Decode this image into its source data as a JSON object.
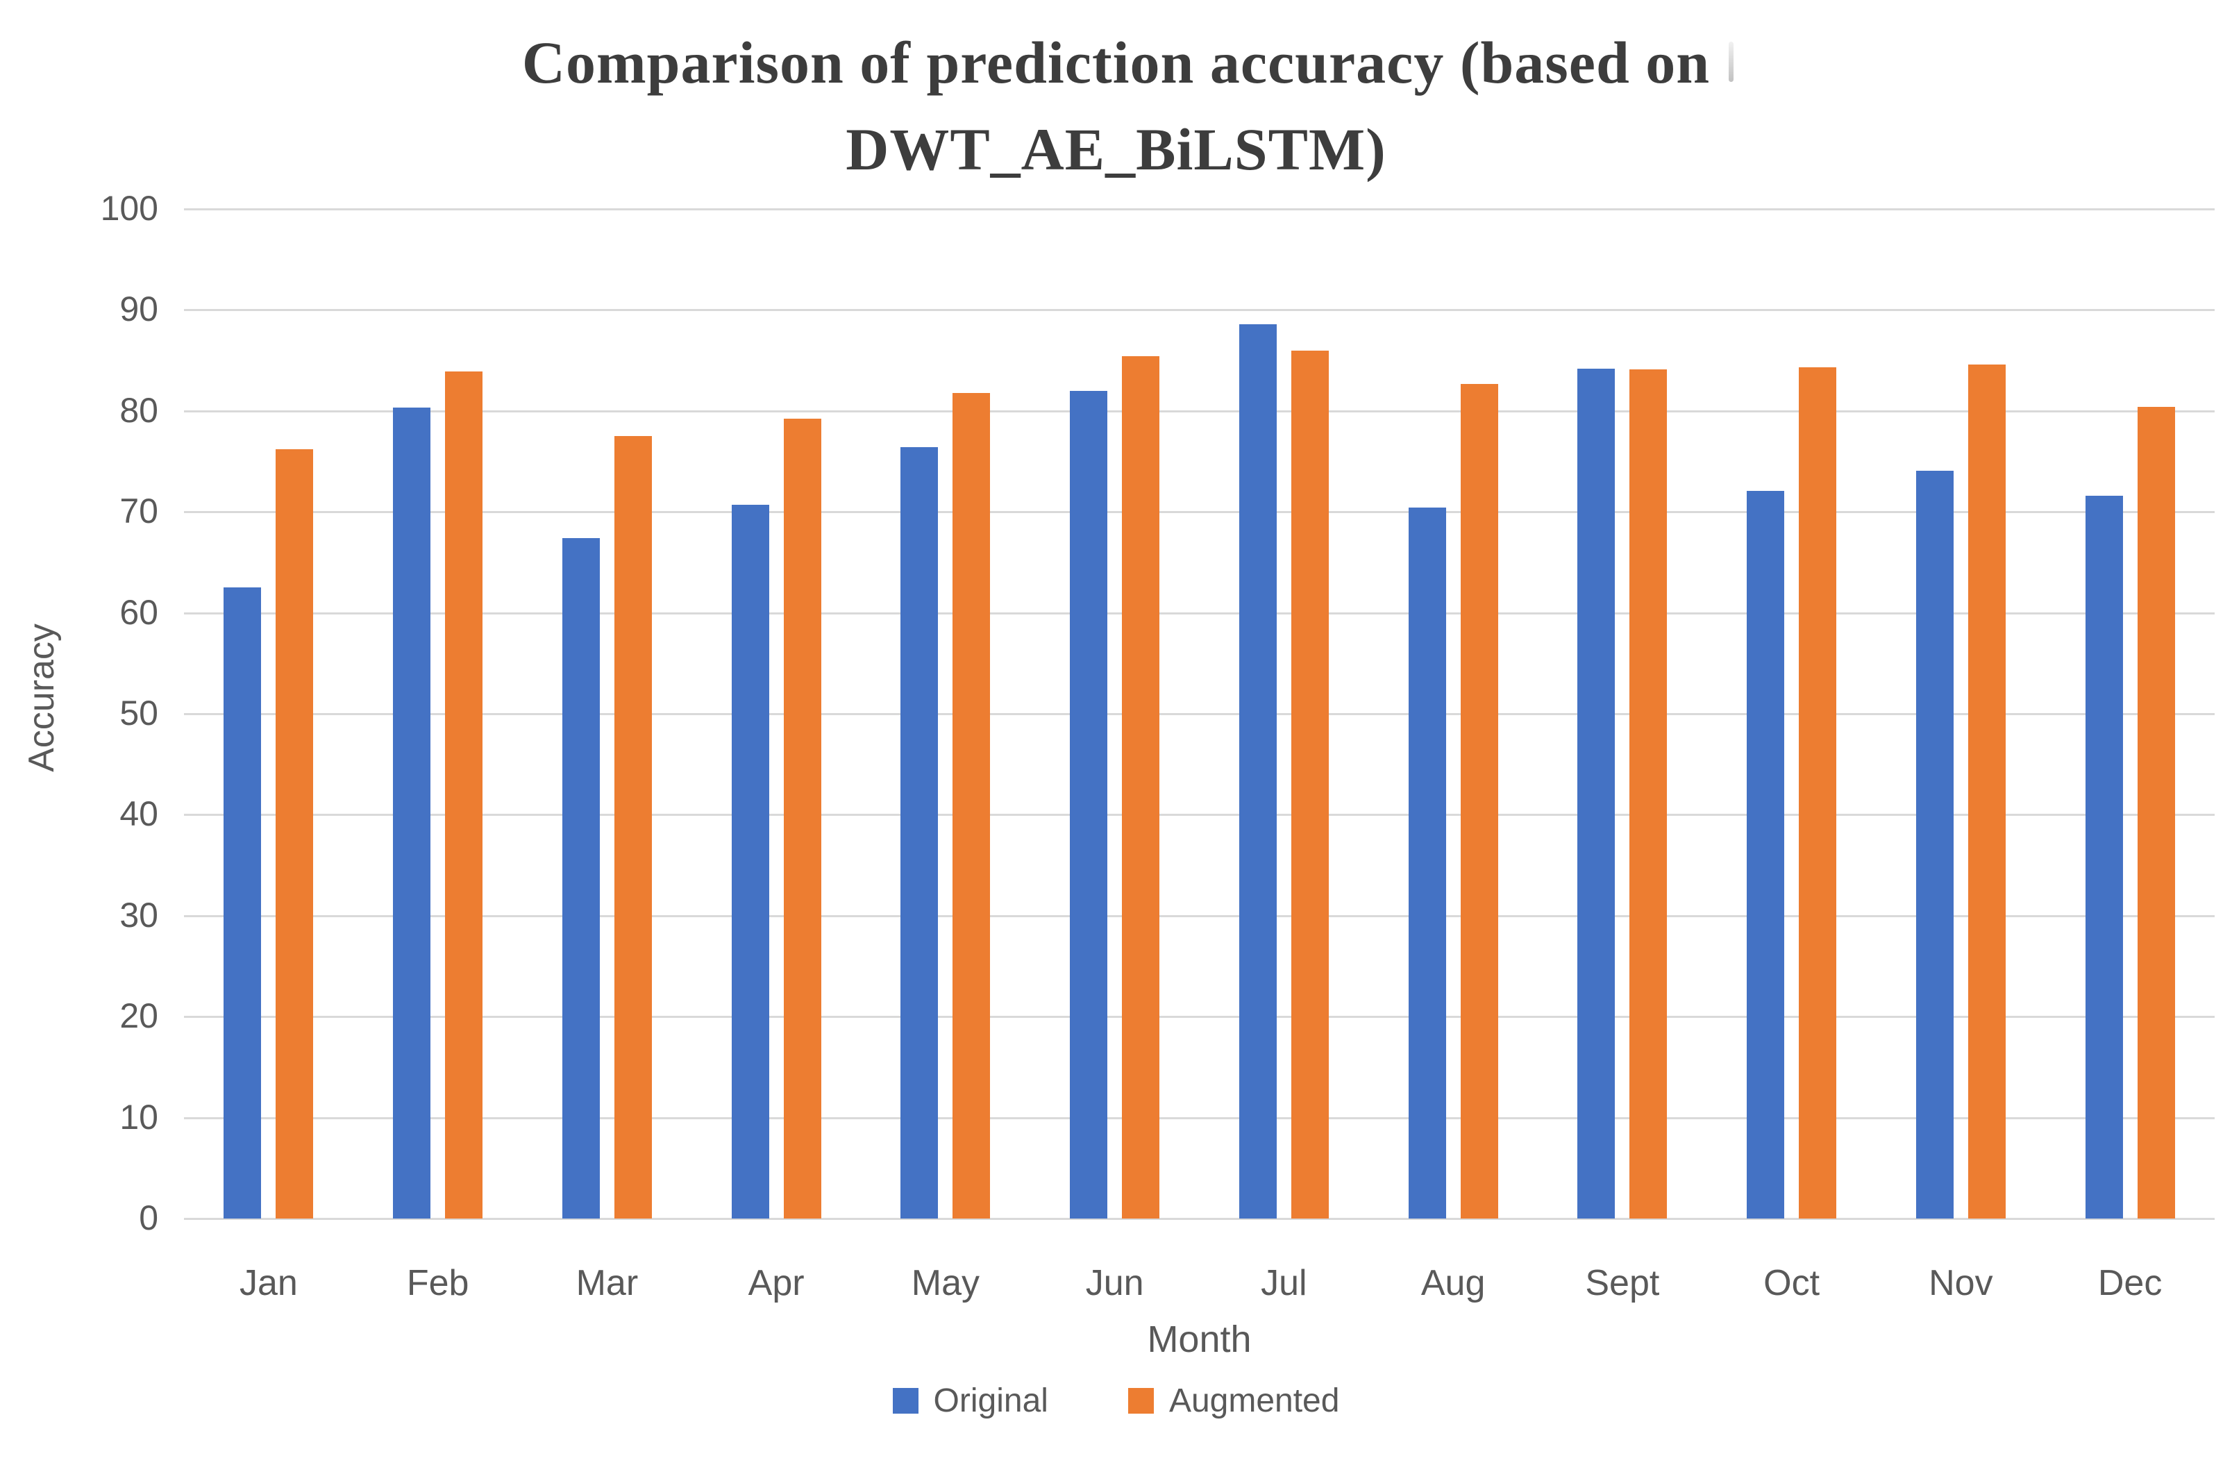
{
  "title": {
    "line1": "Comparison of prediction accuracy (based on",
    "line2": "DWT_AE_BiLSTM)"
  },
  "axes": {
    "y_label": "Accuracy",
    "x_label": "Month",
    "y_ticks": [
      0,
      10,
      20,
      30,
      40,
      50,
      60,
      70,
      80,
      90,
      100
    ]
  },
  "legend": {
    "items": [
      {
        "label": "Original",
        "color": "#4472C4"
      },
      {
        "label": "Augmented",
        "color": "#ED7D31"
      }
    ]
  },
  "colors": {
    "original": "#4472C4",
    "augmented": "#ED7D31",
    "gridline": "#d9d9d9",
    "tick_text": "#595959",
    "title_text": "#3d3d3d"
  },
  "chart_data": {
    "type": "bar",
    "title": "Comparison of prediction accuracy (based on DWT_AE_BiLSTM)",
    "xlabel": "Month",
    "ylabel": "Accuracy",
    "ylim": [
      0,
      100
    ],
    "ytick_step": 10,
    "grid": true,
    "legend_position": "bottom",
    "categories": [
      "Jan",
      "Feb",
      "Mar",
      "Apr",
      "May",
      "Jun",
      "Jul",
      "Aug",
      "Sept",
      "Oct",
      "Nov",
      "Dec"
    ],
    "series": [
      {
        "name": "Original",
        "color": "#4472C4",
        "values": [
          62.5,
          80.3,
          67.4,
          70.7,
          76.4,
          82.0,
          88.6,
          70.4,
          84.2,
          72.1,
          74.1,
          71.6
        ]
      },
      {
        "name": "Augmented",
        "color": "#ED7D31",
        "values": [
          76.2,
          83.9,
          77.5,
          79.2,
          81.8,
          85.4,
          86.0,
          82.7,
          84.1,
          84.3,
          84.6,
          80.4
        ]
      }
    ]
  }
}
